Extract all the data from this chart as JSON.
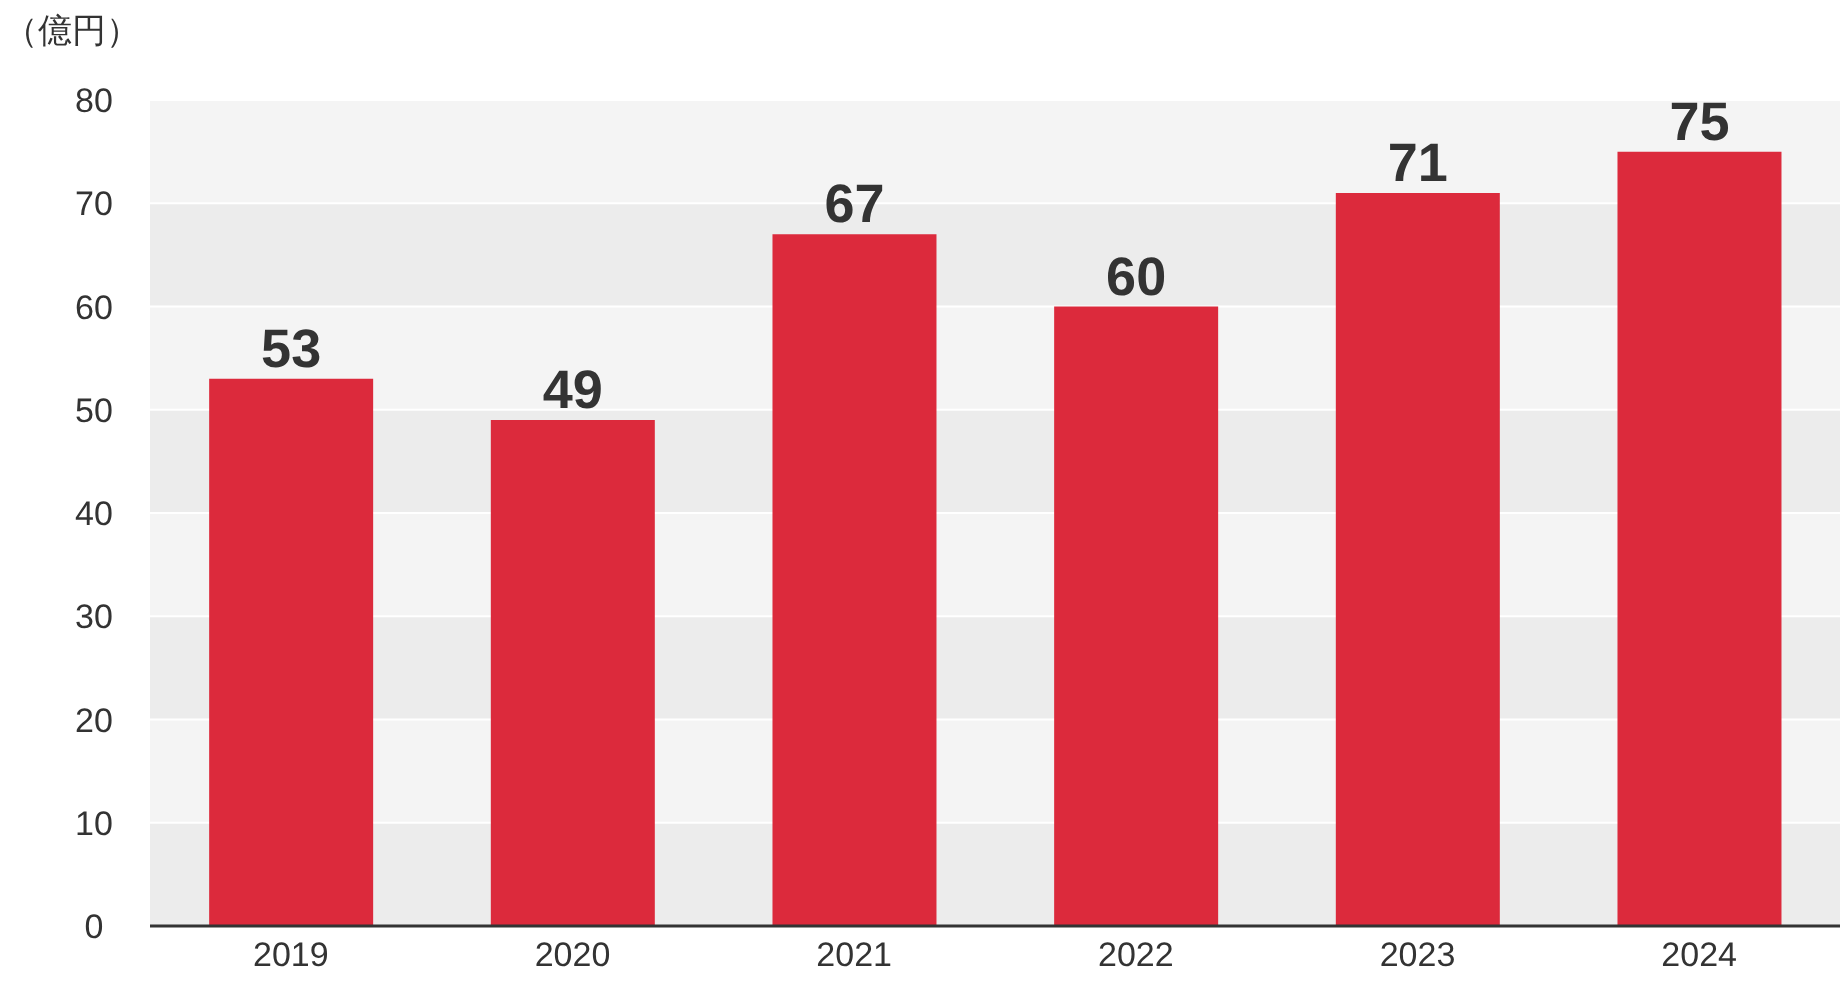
{
  "chart_data": {
    "type": "bar",
    "ylabel": "（億円）",
    "categories": [
      "2019",
      "2020",
      "2021",
      "2022",
      "2023",
      "2024"
    ],
    "values": [
      53,
      49,
      67,
      60,
      71,
      75
    ],
    "color": "#dc2a3c",
    "ylim": [
      0,
      80
    ],
    "yticks": [
      0,
      10,
      20,
      30,
      40,
      50,
      60,
      70,
      80
    ],
    "grid": "y",
    "data_labels": true
  }
}
